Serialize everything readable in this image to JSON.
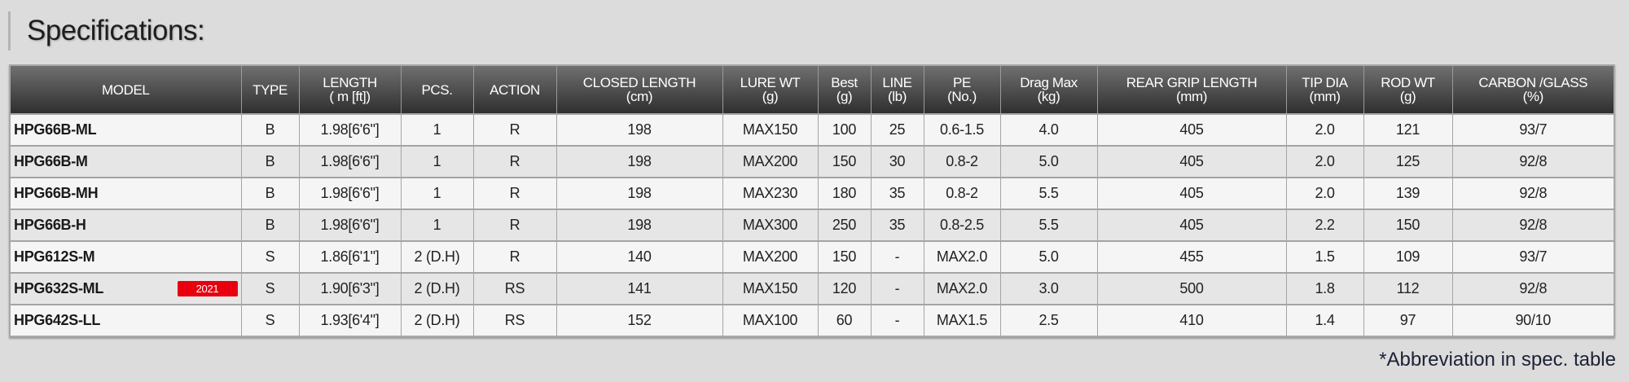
{
  "title": "Specifications:",
  "footnote": "*Abbreviation in spec. table",
  "colors": {
    "header_bg": "#2f2f2f",
    "badge": "#e8000e"
  },
  "headers": [
    [
      "MODEL",
      ""
    ],
    [
      "TYPE",
      ""
    ],
    [
      "LENGTH",
      "( m [ft])"
    ],
    [
      "PCS.",
      ""
    ],
    [
      "ACTION",
      ""
    ],
    [
      "CLOSED LENGTH",
      "(cm)"
    ],
    [
      "LURE WT",
      "(g)"
    ],
    [
      "Best",
      "(g)"
    ],
    [
      "LINE",
      "(lb)"
    ],
    [
      "PE",
      "(No.)"
    ],
    [
      "Drag Max",
      "(kg)"
    ],
    [
      "REAR GRIP LENGTH",
      "(mm)"
    ],
    [
      "TIP DIA",
      "(mm)"
    ],
    [
      "ROD WT",
      "(g)"
    ],
    [
      "CARBON /GLASS",
      "(%)"
    ]
  ],
  "rows": [
    {
      "model": "HPG66B-ML",
      "badge": "",
      "cells": [
        "B",
        "1.98[6'6\"]",
        "1",
        "R",
        "198",
        "MAX150",
        "100",
        "25",
        "0.6-1.5",
        "4.0",
        "405",
        "2.0",
        "121",
        "93/7"
      ]
    },
    {
      "model": "HPG66B-M",
      "badge": "",
      "cells": [
        "B",
        "1.98[6'6\"]",
        "1",
        "R",
        "198",
        "MAX200",
        "150",
        "30",
        "0.8-2",
        "5.0",
        "405",
        "2.0",
        "125",
        "92/8"
      ]
    },
    {
      "model": "HPG66B-MH",
      "badge": "",
      "cells": [
        "B",
        "1.98[6'6\"]",
        "1",
        "R",
        "198",
        "MAX230",
        "180",
        "35",
        "0.8-2",
        "5.5",
        "405",
        "2.0",
        "139",
        "92/8"
      ]
    },
    {
      "model": "HPG66B-H",
      "badge": "",
      "cells": [
        "B",
        "1.98[6'6\"]",
        "1",
        "R",
        "198",
        "MAX300",
        "250",
        "35",
        "0.8-2.5",
        "5.5",
        "405",
        "2.2",
        "150",
        "92/8"
      ]
    },
    {
      "model": "HPG612S-M",
      "badge": "",
      "cells": [
        "S",
        "1.86[6'1\"]",
        "2 (D.H)",
        "R",
        "140",
        "MAX200",
        "150",
        "-",
        "MAX2.0",
        "5.0",
        "455",
        "1.5",
        "109",
        "93/7"
      ]
    },
    {
      "model": "HPG632S-ML",
      "badge": "2021",
      "cells": [
        "S",
        "1.90[6'3\"]",
        "2 (D.H)",
        "RS",
        "141",
        "MAX150",
        "120",
        "-",
        "MAX2.0",
        "3.0",
        "500",
        "1.8",
        "112",
        "92/8"
      ]
    },
    {
      "model": "HPG642S-LL",
      "badge": "",
      "cells": [
        "S",
        "1.93[6'4\"]",
        "2 (D.H)",
        "RS",
        "152",
        "MAX100",
        "60",
        "-",
        "MAX1.5",
        "2.5",
        "410",
        "1.4",
        "97",
        "90/10"
      ]
    }
  ]
}
